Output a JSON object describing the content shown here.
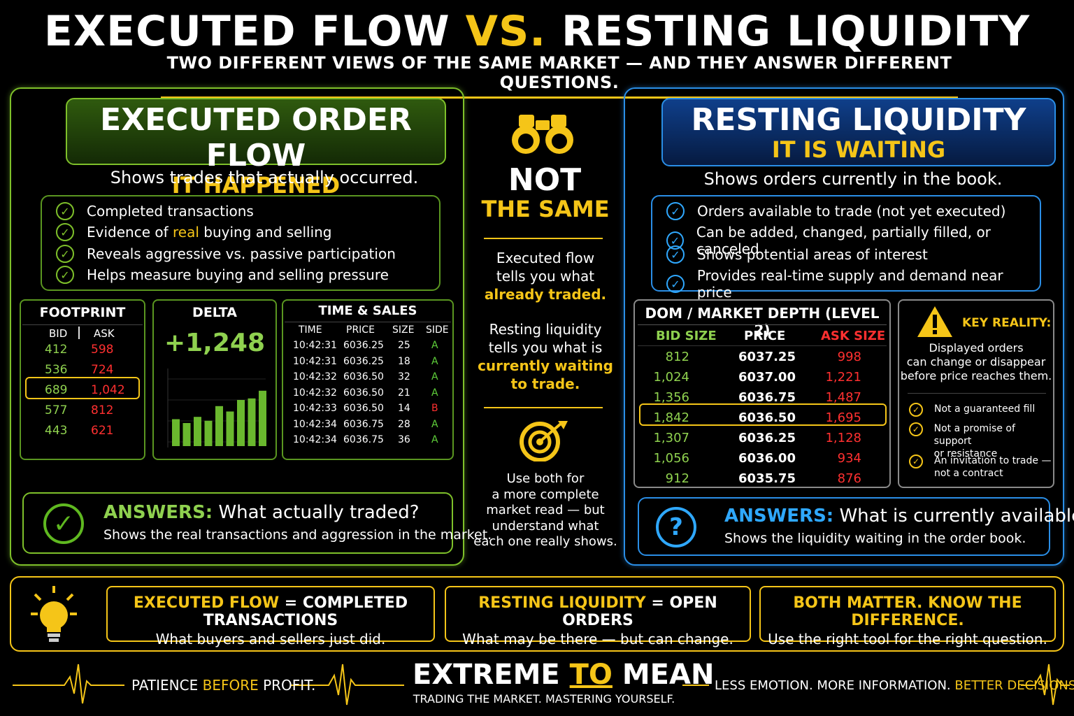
{
  "header": {
    "title_a": "EXECUTED FLOW",
    "title_vs": "VS.",
    "title_b": "RESTING LIQUIDITY",
    "subtitle": "TWO DIFFERENT VIEWS OF THE SAME MARKET — AND THEY ANSWER DIFFERENT QUESTIONS."
  },
  "left": {
    "title": "EXECUTED ORDER FLOW",
    "tag": "IT HAPPENED",
    "lead": "Shows trades that actually occurred.",
    "checks": [
      {
        "pre": "Completed transactions",
        "hl": "",
        "post": ""
      },
      {
        "pre": "Evidence of ",
        "hl": "real",
        "post": " buying and selling"
      },
      {
        "pre": "Reveals aggressive vs. passive participation",
        "hl": "",
        "post": ""
      },
      {
        "pre": "Helps measure buying and selling pressure",
        "hl": "",
        "post": ""
      }
    ],
    "footprint": {
      "title": "FOOTPRINT",
      "bid_label": "BID",
      "ask_label": "ASK",
      "rows": [
        {
          "bid": "412",
          "ask": "598"
        },
        {
          "bid": "536",
          "ask": "724"
        },
        {
          "bid": "689",
          "ask": "1,042"
        },
        {
          "bid": "577",
          "ask": "812"
        },
        {
          "bid": "443",
          "ask": "621"
        }
      ]
    },
    "delta": {
      "title": "DELTA",
      "value": "+1,248",
      "bars": [
        0.35,
        0.3,
        0.38,
        0.33,
        0.52,
        0.45,
        0.6,
        0.62,
        0.72
      ]
    },
    "time_sales": {
      "title": "TIME & SALES",
      "headers": [
        "TIME",
        "PRICE",
        "SIZE",
        "SIDE"
      ],
      "rows": [
        {
          "time": "10:42:31",
          "price": "6036.25",
          "size": "25",
          "side": "A"
        },
        {
          "time": "10:42:31",
          "price": "6036.25",
          "size": "18",
          "side": "A"
        },
        {
          "time": "10:42:32",
          "price": "6036.50",
          "size": "32",
          "side": "A"
        },
        {
          "time": "10:42:32",
          "price": "6036.50",
          "size": "21",
          "side": "A"
        },
        {
          "time": "10:42:33",
          "price": "6036.50",
          "size": "14",
          "side": "B"
        },
        {
          "time": "10:42:34",
          "price": "6036.75",
          "size": "28",
          "side": "A"
        },
        {
          "time": "10:42:34",
          "price": "6036.75",
          "size": "36",
          "side": "A"
        }
      ]
    },
    "answer": {
      "label": "ANSWERS:",
      "question": "What actually traded?",
      "detail": "Shows the real transactions and aggression in the market."
    }
  },
  "center": {
    "not": "NOT",
    "the_same": "THE SAME",
    "p1_a": "Executed flow",
    "p1_b": "tells you what",
    "p1_hl": "already traded.",
    "p2_a": "Resting liquidity",
    "p2_b": "tells you what is",
    "p2_hl1": "currently waiting",
    "p2_hl2": "to trade.",
    "p3": [
      "Use both for",
      "a more complete",
      "market read — but",
      "understand what",
      "each one really shows."
    ]
  },
  "right": {
    "title": "RESTING LIQUIDITY",
    "tag": "IT IS WAITING",
    "lead": "Shows orders currently in the book.",
    "checks": [
      "Orders available to trade (not yet executed)",
      "Can be added, changed, partially filled, or canceled",
      "Shows potential areas of interest",
      "Provides real-time supply and demand near price"
    ],
    "dom": {
      "title": "DOM / MARKET DEPTH (LEVEL 2)",
      "headers": [
        "BID SIZE",
        "PRICE",
        "ASK SIZE"
      ],
      "rows": [
        {
          "bid": "812",
          "price": "6037.25",
          "ask": "998"
        },
        {
          "bid": "1,024",
          "price": "6037.00",
          "ask": "1,221"
        },
        {
          "bid": "1,356",
          "price": "6036.75",
          "ask": "1,487"
        },
        {
          "bid": "1,842",
          "price": "6036.50",
          "ask": "1,695"
        },
        {
          "bid": "1,307",
          "price": "6036.25",
          "ask": "1,128"
        },
        {
          "bid": "1,056",
          "price": "6036.00",
          "ask": "934"
        },
        {
          "bid": "912",
          "price": "6035.75",
          "ask": "876"
        }
      ]
    },
    "key": {
      "title": "KEY REALITY:",
      "body": [
        "Displayed orders",
        "can change or disappear",
        "before price reaches them."
      ],
      "items": [
        [
          "Not a guaranteed fill"
        ],
        [
          "Not a promise of support",
          "or resistance"
        ],
        [
          "An invitation to trade —",
          "not a contract"
        ]
      ]
    },
    "answer": {
      "label": "ANSWERS:",
      "question": "What is currently available?",
      "detail": "Shows the liquidity waiting in the order book."
    }
  },
  "bottom": {
    "b1_hl": "EXECUTED FLOW",
    "b1_rest": " = COMPLETED TRANSACTIONS",
    "b1_sub": "What buyers and sellers just did.",
    "b2_hl": "RESTING LIQUIDITY",
    "b2_rest": " = OPEN ORDERS",
    "b2_sub": "What may be there — but can change.",
    "b3_title": "BOTH MATTER. KNOW THE DIFFERENCE.",
    "b3_sub": "Use the right tool for the right question."
  },
  "footer": {
    "left_a": "PATIENCE ",
    "left_hl": "BEFORE",
    "left_b": " PROFIT.",
    "brand_a": "EXTREME ",
    "brand_hl": "TO",
    "brand_b": " MEAN",
    "tagline": "TRADING THE MARKET. MASTERING YOURSELF.",
    "right_a": "LESS EMOTION. MORE INFORMATION. ",
    "right_hl": "BETTER DECISIONS."
  },
  "colors": {
    "accent_yellow": "#f5c518",
    "green": "#7ec02a",
    "blue": "#2a8ee6",
    "red": "#ff3030"
  }
}
